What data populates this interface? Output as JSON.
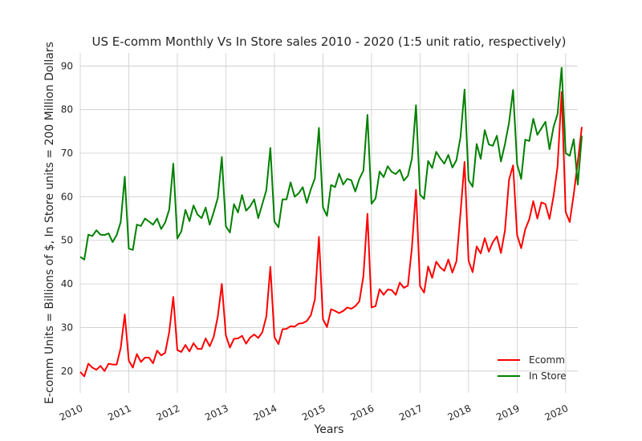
{
  "chart_data": {
    "type": "line",
    "title": "US E-comm Monthly Vs In Store sales 2010 - 2020 (1:5 unit ratio, respectively)",
    "xlabel": "Years",
    "ylabel": "E-comm Units = Billions of $, In Store units = 200 Million Dollars",
    "x_ticks": [
      2010,
      2011,
      2012,
      2013,
      2014,
      2015,
      2016,
      2017,
      2018,
      2019,
      2020
    ],
    "y_ticks": [
      20,
      30,
      40,
      50,
      60,
      70,
      80,
      90
    ],
    "xlim": [
      2010.0,
      2020.25
    ],
    "ylim": [
      15,
      93
    ],
    "grid": true,
    "legend_position": "lower-right",
    "x_start_year": 2010,
    "series": [
      {
        "name": "Ecomm",
        "color": "#ff0000",
        "values": [
          19.8,
          18.8,
          21.7,
          20.8,
          20.3,
          21.2,
          20.0,
          21.7,
          21.5,
          21.5,
          25.3,
          33.0,
          22.4,
          20.8,
          23.9,
          22.1,
          23.1,
          23.1,
          21.8,
          24.7,
          23.6,
          24.2,
          29.0,
          37.0,
          24.8,
          24.4,
          26.0,
          24.5,
          26.4,
          25.1,
          25.1,
          27.5,
          25.7,
          27.9,
          32.5,
          40.0,
          28.2,
          25.4,
          27.4,
          27.5,
          28.1,
          26.3,
          27.7,
          28.4,
          27.6,
          28.9,
          32.5,
          43.9,
          27.8,
          26.2,
          29.6,
          29.7,
          30.3,
          30.2,
          30.9,
          31.0,
          31.5,
          32.8,
          36.4,
          50.8,
          31.9,
          30.1,
          34.2,
          33.8,
          33.3,
          33.8,
          34.6,
          34.3,
          34.9,
          36.0,
          41.8,
          56.1,
          34.6,
          34.9,
          38.8,
          37.5,
          38.7,
          38.6,
          37.5,
          40.3,
          39.1,
          39.6,
          48.4,
          61.6,
          39.5,
          38.0,
          44.0,
          41.4,
          45.1,
          43.8,
          43.0,
          45.6,
          42.6,
          45.2,
          56.2,
          68.0,
          45.3,
          42.7,
          48.6,
          47.0,
          50.5,
          47.4,
          49.6,
          50.9,
          47.1,
          52.3,
          63.9,
          67.2,
          51.2,
          48.2,
          52.5,
          54.8,
          59.0,
          55.0,
          58.7,
          58.3,
          54.9,
          60.1,
          67.0,
          84.0,
          56.5,
          54.2,
          60.6,
          68.0,
          76.0
        ]
      },
      {
        "name": "In Store",
        "color": "#008000",
        "values": [
          46.2,
          45.6,
          51.3,
          51.0,
          52.3,
          51.3,
          51.2,
          51.6,
          49.6,
          51.2,
          54.2,
          64.6,
          48.1,
          47.8,
          53.6,
          53.3,
          55.0,
          54.3,
          53.6,
          55.0,
          52.6,
          54.1,
          57.1,
          67.6,
          50.4,
          52.1,
          57.0,
          54.4,
          58.0,
          55.9,
          55.1,
          57.5,
          53.6,
          56.5,
          59.7,
          69.1,
          53.2,
          51.8,
          58.3,
          56.4,
          60.4,
          56.8,
          57.8,
          59.4,
          55.1,
          58.3,
          61.5,
          71.2,
          54.3,
          53.0,
          59.4,
          59.4,
          63.3,
          60.0,
          60.8,
          62.2,
          58.6,
          61.7,
          64.2,
          75.8,
          57.6,
          55.6,
          62.7,
          62.2,
          65.3,
          62.8,
          64.1,
          63.8,
          61.2,
          64.1,
          66.0,
          78.8,
          58.4,
          59.6,
          65.8,
          64.5,
          67.0,
          65.7,
          65.2,
          66.2,
          63.7,
          64.8,
          68.8,
          81.0,
          60.5,
          59.5,
          68.2,
          66.6,
          70.3,
          68.8,
          67.6,
          69.6,
          66.7,
          68.4,
          73.7,
          84.6,
          63.8,
          62.3,
          72.1,
          68.7,
          75.3,
          72.0,
          71.7,
          74.0,
          68.1,
          72.1,
          77.0,
          84.5,
          67.5,
          64.1,
          73.1,
          72.8,
          77.9,
          74.2,
          75.7,
          77.2,
          70.9,
          76.0,
          79.0,
          89.6,
          70.0,
          69.4,
          73.2,
          62.8,
          74.0
        ]
      }
    ]
  }
}
